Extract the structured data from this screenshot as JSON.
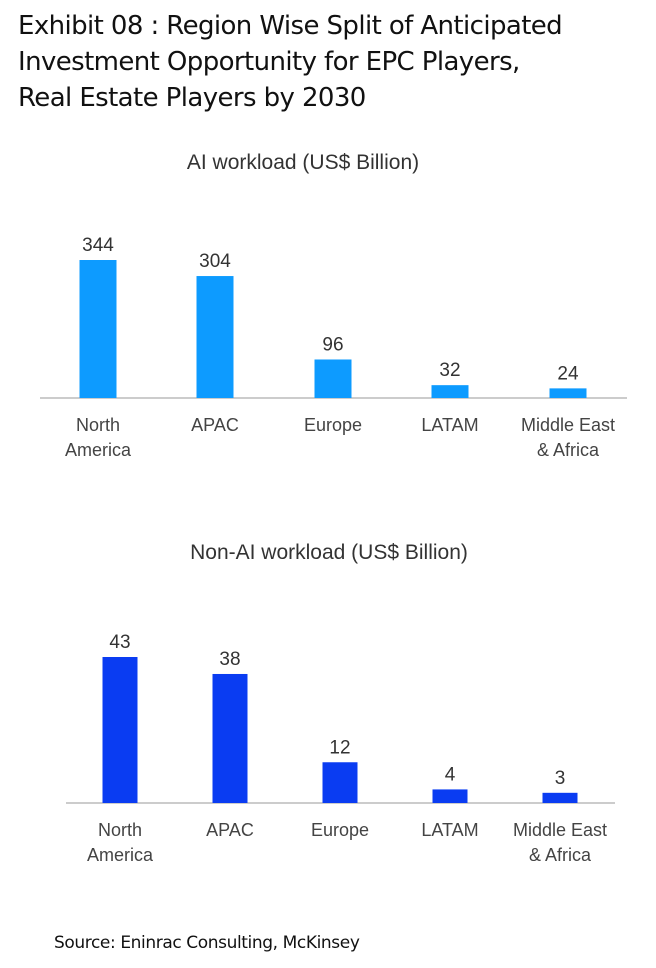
{
  "title_lines": [
    "Exhibit 08 : Region Wise Split of Anticipated",
    "Investment Opportunity for EPC Players,",
    "Real Estate Players by 2030"
  ],
  "source": "Source: Eninrac Consulting, McKinsey",
  "chart_data": [
    {
      "type": "bar",
      "title": "AI workload (US$ Billion)",
      "categories": [
        [
          "North",
          "America"
        ],
        [
          "APAC"
        ],
        [
          "Europe"
        ],
        [
          "LATAM"
        ],
        [
          "Middle East",
          "& Africa"
        ]
      ],
      "values": [
        344,
        304,
        96,
        32,
        24
      ],
      "color": "#0d9bff",
      "ylim": [
        0,
        344
      ],
      "grid": false
    },
    {
      "type": "bar",
      "title": "Non-AI workload (US$ Billion)",
      "categories": [
        [
          "North",
          "America"
        ],
        [
          "APAC"
        ],
        [
          "Europe"
        ],
        [
          "LATAM"
        ],
        [
          "Middle East",
          "& Africa"
        ]
      ],
      "values": [
        43,
        38,
        12,
        4,
        3
      ],
      "color": "#0a3cf2",
      "ylim": [
        0,
        43
      ],
      "grid": false
    }
  ]
}
